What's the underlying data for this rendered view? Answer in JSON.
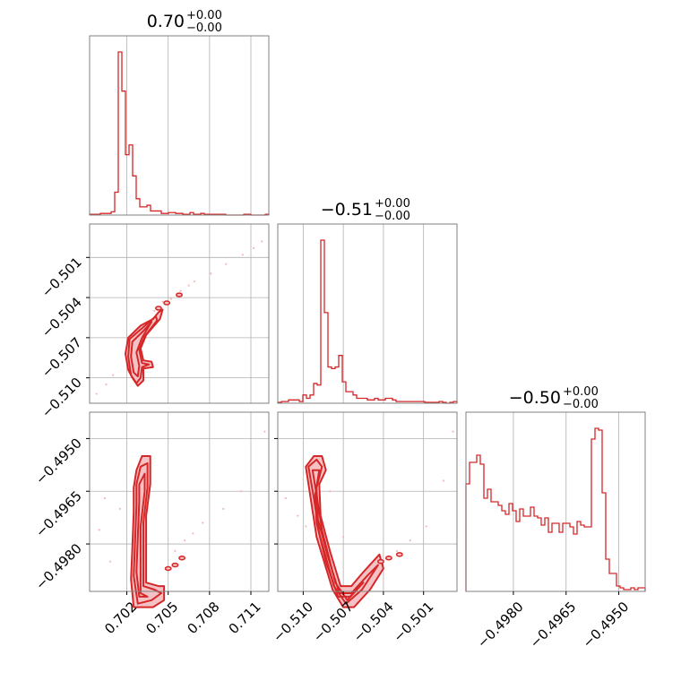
{
  "colors": {
    "main": "#d62728",
    "fill": "#f4c2c4",
    "scatter": "#f2b8ba",
    "grid": "#b0b0b0",
    "frame": "#808080"
  },
  "chart_data": {
    "type": "corner",
    "titles": [
      {
        "value": "0.70",
        "plus": "+0.00",
        "minus": "−0.00"
      },
      {
        "value": "−0.51",
        "plus": "+0.00",
        "minus": "−0.00"
      },
      {
        "value": "−0.50",
        "plus": "+0.00",
        "minus": "−0.00"
      }
    ],
    "params": [
      {
        "range": [
          0.6993,
          0.7123
        ],
        "ticks": [
          0.702,
          0.705,
          0.708,
          0.711
        ],
        "tick_labels": [
          "0.702",
          "0.705",
          "0.708",
          "0.711"
        ]
      },
      {
        "range": [
          -0.5119,
          -0.4985
        ],
        "ticks": [
          -0.51,
          -0.507,
          -0.504,
          -0.501
        ],
        "tick_labels": [
          "−0.510",
          "−0.507",
          "−0.504",
          "−0.501"
        ]
      },
      {
        "range": [
          -0.49935,
          -0.49425
        ],
        "ticks": [
          -0.498,
          -0.4965,
          -0.495
        ],
        "tick_labels": [
          "−0.4980",
          "−0.4965",
          "−0.4950"
        ]
      }
    ],
    "hist": [
      {
        "bins": 50,
        "counts": [
          0.5,
          0.5,
          0.5,
          1,
          1,
          1,
          2,
          14,
          100,
          76,
          37,
          43,
          24,
          10,
          5,
          5,
          6,
          2.5,
          2.5,
          2.5,
          1,
          1,
          1.5,
          1.5,
          1,
          1,
          0.5,
          0.5,
          1.5,
          0.5,
          0.5,
          1,
          0.5,
          0.5,
          0.5,
          0.5,
          0.5,
          0.5,
          0,
          0,
          0,
          0,
          0,
          0.5,
          0.5,
          0,
          0,
          0,
          0,
          0.5
        ]
      },
      {
        "bins": 50,
        "counts": [
          0.5,
          1,
          1,
          2,
          2,
          2,
          1,
          5,
          3,
          5,
          12,
          11,
          99,
          55,
          22,
          21,
          22,
          29,
          13,
          7,
          7,
          5,
          3,
          3,
          3,
          2,
          2,
          3,
          2,
          2,
          3,
          3,
          2,
          1,
          1,
          1,
          1,
          1,
          1,
          1,
          1,
          0.5,
          0.5,
          0.5,
          0.5,
          1,
          0.5,
          0,
          0.5,
          1
        ]
      },
      {
        "bins": 50,
        "counts": [
          60,
          72,
          72,
          76,
          71,
          52,
          57,
          50,
          50,
          48,
          45,
          43,
          49,
          45,
          39,
          46,
          42,
          42,
          47,
          42,
          41,
          37,
          41,
          33,
          38,
          38,
          33,
          38,
          38,
          36,
          32,
          39,
          37,
          36,
          36,
          85,
          91,
          90,
          55,
          18,
          10,
          10,
          3,
          2,
          1,
          1,
          2,
          1,
          2,
          2
        ]
      }
    ],
    "pairs": [
      {
        "x": 0,
        "y": 1,
        "samples": [
          [
            0.7046,
            -0.5043
          ],
          [
            0.7059,
            -0.5035
          ],
          [
            0.7069,
            -0.5028
          ],
          [
            0.7081,
            -0.5022
          ],
          [
            0.7092,
            -0.5015
          ],
          [
            0.7104,
            -0.5008
          ],
          [
            0.7112,
            -0.5003
          ],
          [
            0.7005,
            -0.5105
          ],
          [
            0.6998,
            -0.5112
          ],
          [
            0.701,
            -0.5098
          ],
          [
            0.704,
            -0.505
          ],
          [
            0.7052,
            -0.5041
          ],
          [
            0.7065,
            -0.5031
          ],
          [
            0.7118,
            -0.4998
          ]
        ],
        "contours": [
          [
            [
              0.7021,
              -0.507
            ],
            [
              0.703,
              -0.5061
            ],
            [
              0.7039,
              -0.5056
            ],
            [
              0.7043,
              -0.5051
            ],
            [
              0.7046,
              -0.5049
            ],
            [
              0.7044,
              -0.5056
            ],
            [
              0.7034,
              -0.5068
            ],
            [
              0.703,
              -0.5078
            ],
            [
              0.7032,
              -0.5087
            ],
            [
              0.7038,
              -0.5088
            ],
            [
              0.7039,
              -0.5092
            ],
            [
              0.7032,
              -0.5093
            ],
            [
              0.7032,
              -0.5102
            ],
            [
              0.7028,
              -0.5106
            ],
            [
              0.7024,
              -0.51
            ],
            [
              0.7021,
              -0.5094
            ],
            [
              0.7019,
              -0.5082
            ]
          ],
          [
            [
              0.7022,
              -0.5071
            ],
            [
              0.7031,
              -0.5063
            ],
            [
              0.7041,
              -0.5054
            ],
            [
              0.7042,
              -0.5057
            ],
            [
              0.7033,
              -0.5069
            ],
            [
              0.7029,
              -0.5079
            ],
            [
              0.7031,
              -0.5089
            ],
            [
              0.7036,
              -0.509
            ],
            [
              0.7031,
              -0.5092
            ],
            [
              0.703,
              -0.51
            ],
            [
              0.7027,
              -0.5104
            ],
            [
              0.7023,
              -0.5098
            ],
            [
              0.7021,
              -0.5084
            ]
          ],
          [
            [
              0.7024,
              -0.5073
            ],
            [
              0.7032,
              -0.5065
            ],
            [
              0.7038,
              -0.5058
            ],
            [
              0.7031,
              -0.507
            ],
            [
              0.7027,
              -0.5081
            ],
            [
              0.7029,
              -0.5091
            ],
            [
              0.7028,
              -0.5099
            ],
            [
              0.7025,
              -0.5096
            ],
            [
              0.7023,
              -0.5084
            ]
          ]
        ],
        "blobs": [
          [
            0.7043,
            -0.5048
          ],
          [
            0.7049,
            -0.5044
          ],
          [
            0.7058,
            -0.5038
          ]
        ]
      },
      {
        "x": 0,
        "y": 2,
        "samples": [
          [
            0.703,
            -0.497
          ],
          [
            0.7026,
            -0.4962
          ],
          [
            0.7015,
            -0.497
          ],
          [
            0.7008,
            -0.4985
          ],
          [
            0.7062,
            -0.4979
          ],
          [
            0.7075,
            -0.4974
          ],
          [
            0.709,
            -0.497
          ],
          [
            0.7103,
            -0.4965
          ],
          [
            0.712,
            -0.4948
          ],
          [
            0.7004,
            -0.4967
          ],
          [
            0.7,
            -0.4976
          ],
          [
            0.7055,
            -0.4982
          ],
          [
            0.7068,
            -0.4977
          ]
        ],
        "contours": [
          [
            [
              0.7023,
              -0.499
            ],
            [
              0.7024,
              -0.4981
            ],
            [
              0.7025,
              -0.4971
            ],
            [
              0.7025,
              -0.4964
            ],
            [
              0.7027,
              -0.4959
            ],
            [
              0.7031,
              -0.4955
            ],
            [
              0.7037,
              -0.4955
            ],
            [
              0.7037,
              -0.4963
            ],
            [
              0.7034,
              -0.4972
            ],
            [
              0.7034,
              -0.4982
            ],
            [
              0.7034,
              -0.4991
            ],
            [
              0.7043,
              -0.4992
            ],
            [
              0.7047,
              -0.4992
            ],
            [
              0.7047,
              -0.4996
            ],
            [
              0.7039,
              -0.4998
            ],
            [
              0.7032,
              -0.4998
            ],
            [
              0.7025,
              -0.4998
            ]
          ],
          [
            [
              0.7025,
              -0.4989
            ],
            [
              0.7026,
              -0.4979
            ],
            [
              0.7027,
              -0.4969
            ],
            [
              0.7027,
              -0.4963
            ],
            [
              0.703,
              -0.4958
            ],
            [
              0.7035,
              -0.4957
            ],
            [
              0.7035,
              -0.4964
            ],
            [
              0.7032,
              -0.4974
            ],
            [
              0.7032,
              -0.4983
            ],
            [
              0.7032,
              -0.4992
            ],
            [
              0.704,
              -0.4993
            ],
            [
              0.7045,
              -0.4994
            ],
            [
              0.7038,
              -0.4996
            ],
            [
              0.7028,
              -0.4997
            ]
          ],
          [
            [
              0.7027,
              -0.4988
            ],
            [
              0.7028,
              -0.4978
            ],
            [
              0.7029,
              -0.4968
            ],
            [
              0.7029,
              -0.4963
            ],
            [
              0.7033,
              -0.496
            ],
            [
              0.7033,
              -0.4965
            ],
            [
              0.703,
              -0.4975
            ],
            [
              0.703,
              -0.4985
            ],
            [
              0.703,
              -0.4994
            ],
            [
              0.7035,
              -0.4995
            ],
            [
              0.7029,
              -0.4995
            ]
          ]
        ],
        "blobs": [
          [
            0.705,
            -0.4987
          ],
          [
            0.7055,
            -0.4986
          ],
          [
            0.706,
            -0.4984
          ]
        ]
      },
      {
        "x": 1,
        "y": 2,
        "samples": [
          [
            -0.509,
            -0.497
          ],
          [
            -0.5098,
            -0.4975
          ],
          [
            -0.508,
            -0.4965
          ],
          [
            -0.507,
            -0.4978
          ],
          [
            -0.503,
            -0.4982
          ],
          [
            -0.502,
            -0.4979
          ],
          [
            -0.5008,
            -0.4975
          ],
          [
            -0.4995,
            -0.4962
          ],
          [
            -0.4988,
            -0.4948
          ],
          [
            -0.5113,
            -0.4967
          ],
          [
            -0.5104,
            -0.4972
          ]
        ],
        "contours": [
          [
            [
              -0.5098,
              -0.4958
            ],
            [
              -0.5092,
              -0.4955
            ],
            [
              -0.5086,
              -0.4955
            ],
            [
              -0.5083,
              -0.4959
            ],
            [
              -0.5088,
              -0.4963
            ],
            [
              -0.5087,
              -0.4972
            ],
            [
              -0.508,
              -0.4982
            ],
            [
              -0.5072,
              -0.4992
            ],
            [
              -0.5064,
              -0.4992
            ],
            [
              -0.5055,
              -0.4988
            ],
            [
              -0.5043,
              -0.4983
            ],
            [
              -0.504,
              -0.4987
            ],
            [
              -0.505,
              -0.4993
            ],
            [
              -0.5062,
              -0.4998
            ],
            [
              -0.507,
              -0.4998
            ],
            [
              -0.5078,
              -0.4993
            ],
            [
              -0.509,
              -0.4978
            ],
            [
              -0.5094,
              -0.4968
            ]
          ],
          [
            [
              -0.5096,
              -0.4958
            ],
            [
              -0.509,
              -0.4956
            ],
            [
              -0.5086,
              -0.4958
            ],
            [
              -0.509,
              -0.4964
            ],
            [
              -0.5089,
              -0.4973
            ],
            [
              -0.5082,
              -0.4983
            ],
            [
              -0.5073,
              -0.4994
            ],
            [
              -0.5064,
              -0.4994
            ],
            [
              -0.5052,
              -0.4989
            ],
            [
              -0.5044,
              -0.4986
            ],
            [
              -0.5056,
              -0.4993
            ],
            [
              -0.5068,
              -0.4997
            ],
            [
              -0.5077,
              -0.4992
            ],
            [
              -0.5088,
              -0.4977
            ],
            [
              -0.5092,
              -0.4967
            ]
          ],
          [
            [
              -0.5093,
              -0.4959
            ],
            [
              -0.5088,
              -0.4959
            ],
            [
              -0.5091,
              -0.4966
            ],
            [
              -0.509,
              -0.4974
            ],
            [
              -0.5083,
              -0.4985
            ],
            [
              -0.5074,
              -0.4995
            ],
            [
              -0.5065,
              -0.4995
            ],
            [
              -0.5055,
              -0.4991
            ],
            [
              -0.5067,
              -0.4996
            ],
            [
              -0.5076,
              -0.4991
            ],
            [
              -0.5086,
              -0.4976
            ],
            [
              -0.509,
              -0.4966
            ]
          ]
        ],
        "blobs": [
          [
            -0.5042,
            -0.4985
          ],
          [
            -0.5036,
            -0.4984
          ],
          [
            -0.5028,
            -0.4983
          ]
        ]
      }
    ]
  }
}
